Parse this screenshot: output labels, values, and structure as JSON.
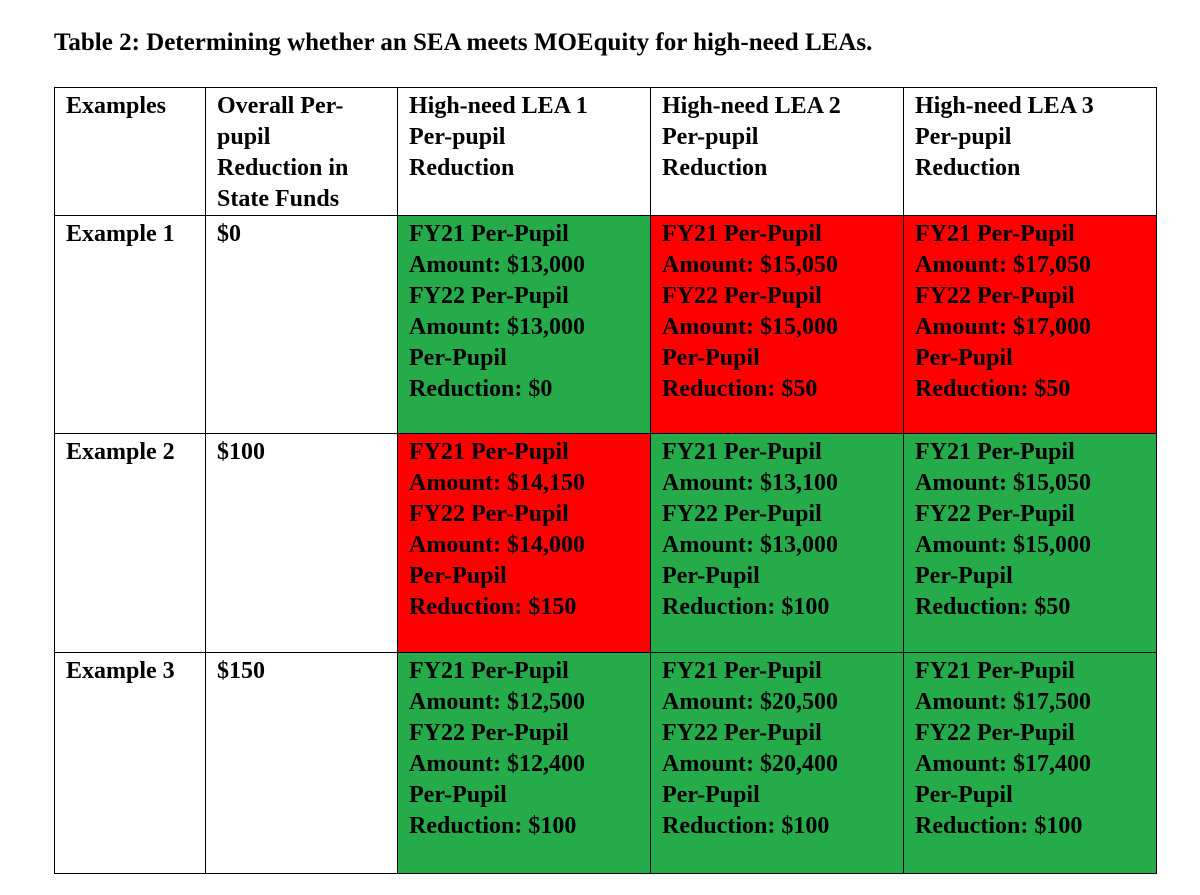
{
  "caption": "Table 2:  Determining whether an SEA meets MOEquity for high-need LEAs.",
  "colors": {
    "meets": "#25ab49",
    "does_not_meet": "#ff0000"
  },
  "header": {
    "examples": "Examples",
    "overall": [
      "Overall Per-",
      "pupil",
      "Reduction in",
      "State Funds"
    ],
    "lea1": [
      "High-need LEA 1",
      "Per-pupil",
      "Reduction"
    ],
    "lea2": [
      "High-need LEA 2",
      "Per-pupil",
      "Reduction"
    ],
    "lea3": [
      "High-need LEA 3",
      "Per-pupil",
      "Reduction"
    ]
  },
  "rows": [
    {
      "label": "Example 1",
      "overall": "$0",
      "cells": [
        {
          "status": "green",
          "lines": [
            "FY21 Per-Pupil",
            "Amount: $13,000",
            "FY22 Per-Pupil",
            "Amount: $13,000",
            "Per-Pupil",
            "Reduction: $0"
          ]
        },
        {
          "status": "red",
          "lines": [
            "FY21 Per-Pupil",
            "Amount: $15,050",
            "FY22 Per-Pupil",
            "Amount: $15,000",
            "Per-Pupil",
            "Reduction: $50"
          ]
        },
        {
          "status": "red",
          "lines": [
            "FY21 Per-Pupil",
            "Amount: $17,050",
            "FY22 Per-Pupil",
            "Amount: $17,000",
            "Per-Pupil",
            "Reduction: $50"
          ]
        }
      ]
    },
    {
      "label": "Example 2",
      "overall": "$100",
      "cells": [
        {
          "status": "red",
          "lines": [
            "FY21 Per-Pupil",
            "Amount: $14,150",
            "FY22 Per-Pupil",
            "Amount: $14,000",
            "Per-Pupil",
            "Reduction: $150"
          ]
        },
        {
          "status": "green",
          "lines": [
            "FY21 Per-Pupil",
            "Amount: $13,100",
            "FY22 Per-Pupil",
            "Amount: $13,000",
            "Per-Pupil",
            "Reduction: $100"
          ]
        },
        {
          "status": "green",
          "lines": [
            "FY21 Per-Pupil",
            "Amount: $15,050",
            "FY22 Per-Pupil",
            "Amount: $15,000",
            "Per-Pupil",
            "Reduction: $50"
          ]
        }
      ]
    },
    {
      "label": "Example 3",
      "overall": "$150",
      "cells": [
        {
          "status": "green",
          "lines": [
            "FY21 Per-Pupil",
            "Amount: $12,500",
            "FY22 Per-Pupil",
            "Amount: $12,400",
            "Per-Pupil",
            "Reduction: $100"
          ]
        },
        {
          "status": "green",
          "lines": [
            "FY21 Per-Pupil",
            "Amount: $20,500",
            "FY22 Per-Pupil",
            "Amount: $20,400",
            "Per-Pupil",
            "Reduction: $100"
          ]
        },
        {
          "status": "green",
          "lines": [
            "FY21 Per-Pupil",
            "Amount: $17,500",
            "FY22 Per-Pupil",
            "Amount: $17,400",
            "Per-Pupil",
            "Reduction: $100"
          ]
        }
      ]
    }
  ]
}
